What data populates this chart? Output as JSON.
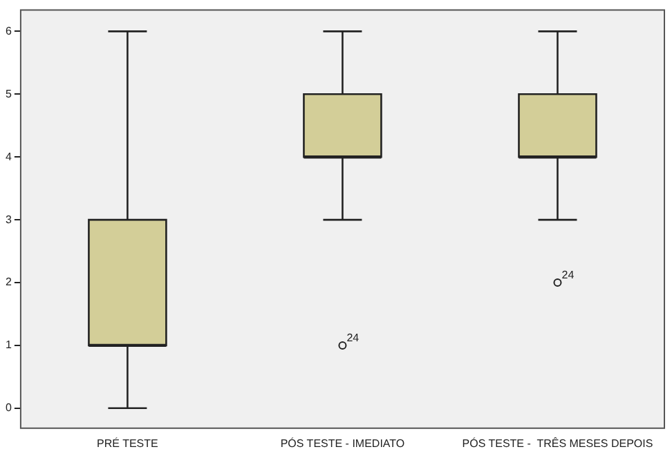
{
  "chart_data": {
    "type": "box",
    "categories": [
      "PRÉ TESTE",
      "PÓS TESTE - IMEDIATO",
      "PÓS TESTE -  TRÊS MESES DEPOIS"
    ],
    "series": [
      {
        "color": "#d3ce98",
        "boxes": [
          {
            "low": 0,
            "q1": 1,
            "median": 1,
            "q3": 3,
            "high": 6
          },
          {
            "low": 3,
            "q1": 4,
            "median": 4,
            "q3": 5,
            "high": 6,
            "outliers": [
              1
            ]
          },
          {
            "low": 3,
            "q1": 4,
            "median": 4,
            "q3": 5,
            "high": 6,
            "outliers": [
              2
            ]
          }
        ]
      }
    ],
    "ylim": [
      -0.33,
      6.35
    ],
    "yticks": [
      0,
      1,
      2,
      3,
      4,
      5,
      6
    ],
    "grid": false,
    "legend": false,
    "annotations": [
      "24",
      "24"
    ]
  }
}
